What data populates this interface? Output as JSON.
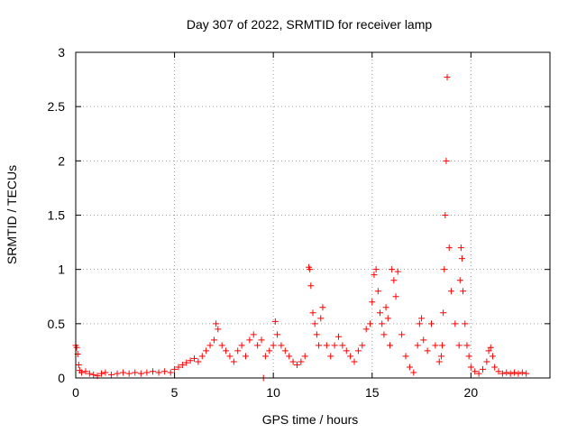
{
  "chart_data": {
    "type": "scatter",
    "title": "Day 307 of 2022, SRMTID for receiver lamp",
    "xlabel": "GPS time / hours",
    "ylabel": "SRMTID / TECUs",
    "xlim": [
      0,
      24
    ],
    "ylim": [
      0,
      3
    ],
    "grid": true,
    "xticks": [
      0,
      5,
      10,
      15,
      20
    ],
    "xtick_labels": [
      "0",
      "5",
      "10",
      "15",
      "20"
    ],
    "yticks": [
      0,
      0.5,
      1,
      1.5,
      2,
      2.5,
      3
    ],
    "ytick_labels": [
      "0",
      "0.5",
      "1",
      "1.5",
      "2",
      "2.5",
      "3"
    ],
    "marker": "+",
    "color": "#ff0000",
    "series": [
      {
        "name": "SRMTID",
        "x": [
          0.0,
          0.05,
          0.1,
          0.15,
          0.2,
          0.3,
          0.5,
          0.7,
          0.9,
          1.1,
          1.3,
          1.5,
          1.8,
          2.1,
          2.4,
          2.7,
          3.0,
          3.3,
          3.6,
          3.9,
          4.2,
          4.5,
          4.8,
          5.0,
          5.2,
          5.4,
          5.6,
          5.8,
          6.0,
          6.2,
          6.4,
          6.6,
          6.8,
          7.0,
          7.1,
          7.2,
          7.4,
          7.6,
          7.8,
          8.0,
          8.2,
          8.4,
          8.6,
          8.8,
          9.0,
          9.2,
          9.4,
          9.5,
          9.6,
          9.8,
          10.0,
          10.1,
          10.2,
          10.4,
          10.6,
          10.8,
          11.0,
          11.2,
          11.4,
          11.6,
          11.8,
          11.85,
          11.9,
          12.0,
          12.1,
          12.2,
          12.3,
          12.4,
          12.5,
          12.7,
          12.9,
          13.1,
          13.3,
          13.5,
          13.7,
          13.9,
          14.1,
          14.3,
          14.5,
          14.7,
          14.9,
          15.0,
          15.1,
          15.2,
          15.3,
          15.4,
          15.5,
          15.6,
          15.7,
          15.8,
          15.9,
          16.0,
          16.1,
          16.2,
          16.3,
          16.5,
          16.7,
          16.9,
          17.1,
          17.3,
          17.4,
          17.5,
          17.6,
          17.8,
          18.0,
          18.2,
          18.4,
          18.5,
          18.55,
          18.6,
          18.65,
          18.7,
          18.75,
          18.8,
          18.9,
          19.0,
          19.2,
          19.4,
          19.45,
          19.5,
          19.55,
          19.6,
          19.7,
          19.8,
          19.9,
          20.0,
          20.2,
          20.4,
          20.6,
          20.8,
          20.9,
          21.0,
          21.1,
          21.2,
          21.4,
          21.6,
          21.8,
          22.0,
          22.2,
          22.4,
          22.6,
          22.8
        ],
        "y": [
          0.3,
          0.28,
          0.22,
          0.12,
          0.07,
          0.05,
          0.06,
          0.04,
          0.03,
          0.02,
          0.04,
          0.05,
          0.03,
          0.04,
          0.05,
          0.04,
          0.05,
          0.04,
          0.05,
          0.06,
          0.05,
          0.06,
          0.05,
          0.08,
          0.1,
          0.12,
          0.14,
          0.16,
          0.18,
          0.15,
          0.2,
          0.25,
          0.3,
          0.35,
          0.5,
          0.45,
          0.3,
          0.25,
          0.2,
          0.15,
          0.25,
          0.3,
          0.2,
          0.35,
          0.4,
          0.3,
          0.35,
          0.0,
          0.2,
          0.25,
          0.3,
          0.52,
          0.4,
          0.3,
          0.25,
          0.2,
          0.15,
          0.12,
          0.15,
          0.2,
          1.02,
          1.0,
          0.85,
          0.6,
          0.5,
          0.4,
          0.3,
          0.55,
          0.65,
          0.3,
          0.2,
          0.3,
          0.38,
          0.3,
          0.25,
          0.2,
          0.15,
          0.25,
          0.3,
          0.45,
          0.5,
          0.7,
          0.95,
          1.0,
          0.8,
          0.6,
          0.5,
          0.4,
          0.65,
          0.55,
          0.3,
          1.0,
          0.9,
          0.75,
          0.98,
          0.4,
          0.2,
          0.1,
          0.05,
          0.3,
          0.5,
          0.55,
          0.35,
          0.25,
          0.5,
          0.3,
          0.15,
          0.2,
          0.3,
          0.6,
          1.0,
          1.5,
          2.0,
          2.77,
          1.2,
          0.8,
          0.5,
          0.3,
          0.9,
          1.2,
          1.1,
          0.8,
          0.5,
          0.3,
          0.2,
          0.1,
          0.06,
          0.04,
          0.08,
          0.15,
          0.25,
          0.28,
          0.2,
          0.1,
          0.06,
          0.04,
          0.05,
          0.04,
          0.05,
          0.04,
          0.05,
          0.04
        ]
      }
    ]
  }
}
